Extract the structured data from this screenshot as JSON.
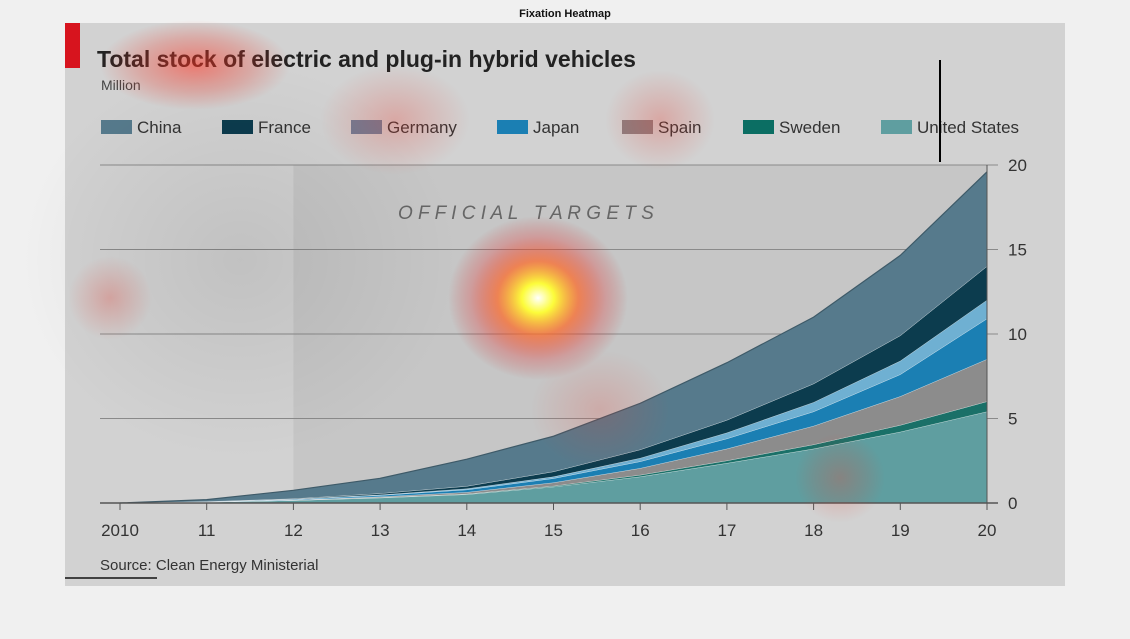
{
  "window": {
    "title": "Fixation Heatmap"
  },
  "chart_data": {
    "type": "area",
    "stacked": true,
    "title": "Total stock of electric and plug-in hybrid vehicles",
    "subtitle": "Million",
    "annotation": "O F F I C I A L   T A R G E T S",
    "source": "Source: Clean Energy Ministerial",
    "x": [
      2010,
      2011,
      2012,
      2013,
      2014,
      2015,
      2016,
      2017,
      2018,
      2019,
      2020
    ],
    "x_tick_labels": [
      "2010",
      "11",
      "12",
      "13",
      "14",
      "15",
      "16",
      "17",
      "18",
      "19",
      "20"
    ],
    "y_ticks": [
      "0",
      "5",
      "10",
      "15",
      "20"
    ],
    "ylim": [
      0,
      20
    ],
    "grid": true,
    "legend_position": "top",
    "shaded_region_from_x": 2012,
    "series": [
      {
        "name": "United States",
        "color": "#5f9ea0",
        "values": [
          0,
          0.05,
          0.15,
          0.3,
          0.5,
          0.95,
          1.55,
          2.35,
          3.2,
          4.2,
          5.4
        ]
      },
      {
        "name": "Sweden",
        "color": "#1a7068",
        "values": [
          0,
          0.0,
          0.0,
          0.02,
          0.03,
          0.05,
          0.1,
          0.15,
          0.25,
          0.4,
          0.6
        ]
      },
      {
        "name": "Spain",
        "color": "#8c8c8c",
        "values": [
          0,
          0.0,
          0.02,
          0.05,
          0.1,
          0.2,
          0.4,
          0.7,
          1.1,
          1.7,
          2.5
        ]
      },
      {
        "name": "Japan",
        "color": "#1b7fb3",
        "values": [
          0,
          0.02,
          0.04,
          0.08,
          0.15,
          0.25,
          0.4,
          0.6,
          0.85,
          1.3,
          2.4
        ]
      },
      {
        "name": "Germany",
        "color": "#6fb0d2",
        "values": [
          0,
          0.0,
          0.01,
          0.03,
          0.06,
          0.1,
          0.2,
          0.35,
          0.55,
          0.8,
          1.1
        ]
      },
      {
        "name": "France",
        "color": "#0c3c4e",
        "values": [
          0,
          0.01,
          0.03,
          0.08,
          0.15,
          0.3,
          0.5,
          0.75,
          1.1,
          1.5,
          2.0
        ]
      },
      {
        "name": "China",
        "color": "#567a8c",
        "values": [
          0,
          0.12,
          0.5,
          0.9,
          1.6,
          2.1,
          2.75,
          3.4,
          3.95,
          4.75,
          5.6
        ]
      }
    ],
    "legend": [
      {
        "name": "China",
        "color": "#567a8c"
      },
      {
        "name": "France",
        "color": "#0c3c4e"
      },
      {
        "name": "Germany",
        "color": "#6a7f99"
      },
      {
        "name": "Japan",
        "color": "#1b7fb3"
      },
      {
        "name": "Spain",
        "color": "#8a7e80"
      },
      {
        "name": "Sweden",
        "color": "#0b6e63"
      },
      {
        "name": "United States",
        "color": "#5f9ea0"
      }
    ]
  }
}
